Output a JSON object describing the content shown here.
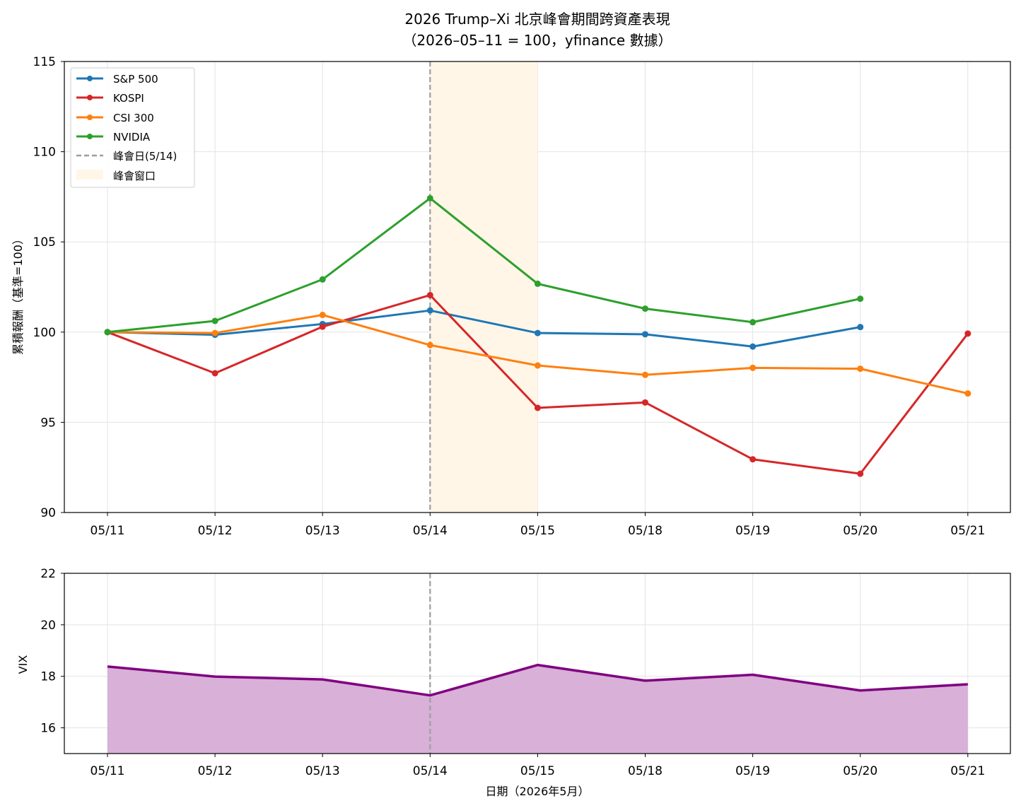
{
  "chart_data": [
    {
      "type": "line",
      "title": "2026 Trump–Xi 北京峰會期間跨資產表現",
      "subtitle": "（2026–05–11 = 100，yfinance 數據）",
      "xlabel": "",
      "ylabel": "累積報酬（基準=100）",
      "categories": [
        "05/11",
        "05/12",
        "05/13",
        "05/14",
        "05/15",
        "05/18",
        "05/19",
        "05/20",
        "05/21"
      ],
      "ylim": [
        90,
        115
      ],
      "yticks": [
        "90",
        "95",
        "100",
        "105",
        "110",
        "115"
      ],
      "grid": true,
      "legend_position": "top-left",
      "series": [
        {
          "name": "S&P 500",
          "color": "#1f77b4",
          "values": [
            100.0,
            99.85,
            100.45,
            101.2,
            99.95,
            99.88,
            99.2,
            100.28,
            null
          ]
        },
        {
          "name": "KOSPI",
          "color": "#d62728",
          "values": [
            100.0,
            97.72,
            100.3,
            102.05,
            95.8,
            96.1,
            92.95,
            92.15,
            99.92
          ]
        },
        {
          "name": "CSI 300",
          "color": "#ff7f0e",
          "values": [
            100.0,
            99.95,
            100.95,
            99.28,
            98.15,
            97.63,
            98.02,
            97.97,
            96.6
          ]
        },
        {
          "name": "NVIDIA",
          "color": "#2ca02c",
          "values": [
            100.0,
            100.62,
            102.92,
            107.42,
            102.68,
            101.3,
            100.55,
            101.85,
            null
          ]
        }
      ],
      "annotations": {
        "vline": {
          "at": "05/14",
          "label": "峰會日(5/14)",
          "color": "#9e9e9e"
        },
        "span": {
          "from": "05/14",
          "to": "05/15",
          "label": "峰會窗口",
          "color": "#fff6e8"
        }
      }
    },
    {
      "type": "area",
      "title": "",
      "xlabel": "日期（2026年5月）",
      "ylabel": "VIX",
      "categories": [
        "05/11",
        "05/12",
        "05/13",
        "05/14",
        "05/15",
        "05/18",
        "05/19",
        "05/20",
        "05/21"
      ],
      "ylim": [
        15,
        22
      ],
      "yticks": [
        "16",
        "18",
        "20",
        "22"
      ],
      "grid": true,
      "series": [
        {
          "name": "",
          "color": "#800080",
          "fill": "#d8b0d8",
          "values": [
            18.38,
            17.99,
            17.88,
            17.26,
            18.44,
            17.83,
            18.06,
            17.45,
            17.69
          ]
        }
      ],
      "annotations": {
        "vline": {
          "at": "05/14",
          "color": "#9e9e9e"
        }
      }
    }
  ]
}
